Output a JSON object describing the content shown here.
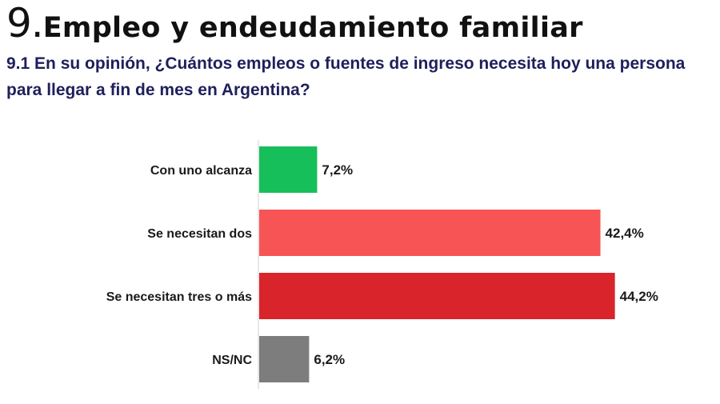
{
  "header": {
    "section_number": "9.",
    "section_title": "Empleo y endeudamiento familiar",
    "question": "9.1 En su opinión, ¿Cuántos empleos o fuentes de ingreso necesita hoy una persona para llegar a fin de mes en Argentina?"
  },
  "chart_data": {
    "type": "bar",
    "orientation": "horizontal",
    "title": "",
    "categories": [
      "Con uno alcanza",
      "Se necesitan dos",
      "Se necesitan tres o más",
      "NS/NC"
    ],
    "values": [
      7.2,
      42.4,
      44.2,
      6.2
    ],
    "value_labels": [
      "7,2%",
      "42,4%",
      "44,2%",
      "6,2%"
    ],
    "colors": [
      "#16bf5a",
      "#f75555",
      "#d9242b",
      "#7d7d7d"
    ],
    "xlim": [
      0,
      50
    ],
    "grid": false,
    "legend": "none"
  }
}
